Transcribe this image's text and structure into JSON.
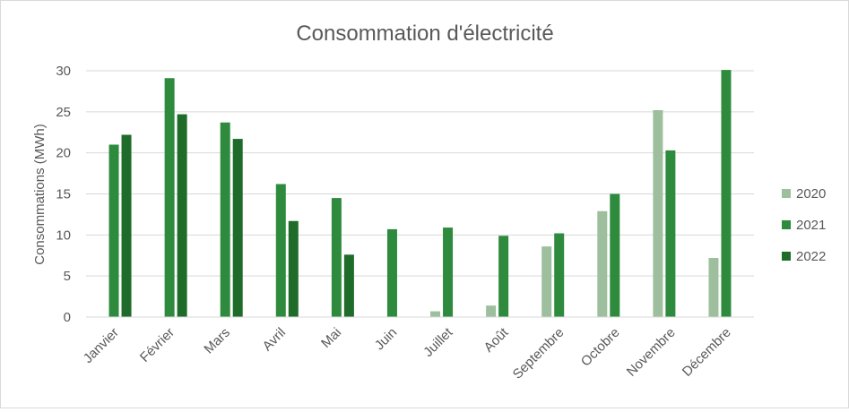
{
  "chart_data": {
    "type": "bar",
    "title": "Consommation d'électricité",
    "xlabel": "",
    "ylabel": "Consommations (MWh)",
    "ylim": [
      0,
      30
    ],
    "yticks": [
      0,
      5,
      10,
      15,
      20,
      25,
      30
    ],
    "grid": true,
    "legend_position": "right",
    "categories": [
      "Janvier",
      "Février",
      "Mars",
      "Avril",
      "Mai",
      "Juin",
      "Juillet",
      "Août",
      "Septembre",
      "Octobre",
      "Novembre",
      "Décembre"
    ],
    "series": [
      {
        "name": "2020",
        "color": "#9dbf9d",
        "values": [
          null,
          null,
          null,
          null,
          null,
          null,
          0.7,
          1.4,
          8.6,
          12.9,
          25.2,
          7.2
        ]
      },
      {
        "name": "2021",
        "color": "#2e8b3e",
        "values": [
          21.0,
          29.1,
          23.7,
          16.2,
          14.5,
          10.7,
          10.9,
          9.9,
          10.2,
          15.0,
          20.3,
          30.1
        ]
      },
      {
        "name": "2022",
        "color": "#1e6b2a",
        "values": [
          22.2,
          24.7,
          21.7,
          11.7,
          7.6,
          null,
          null,
          null,
          null,
          null,
          null,
          null
        ]
      }
    ]
  }
}
